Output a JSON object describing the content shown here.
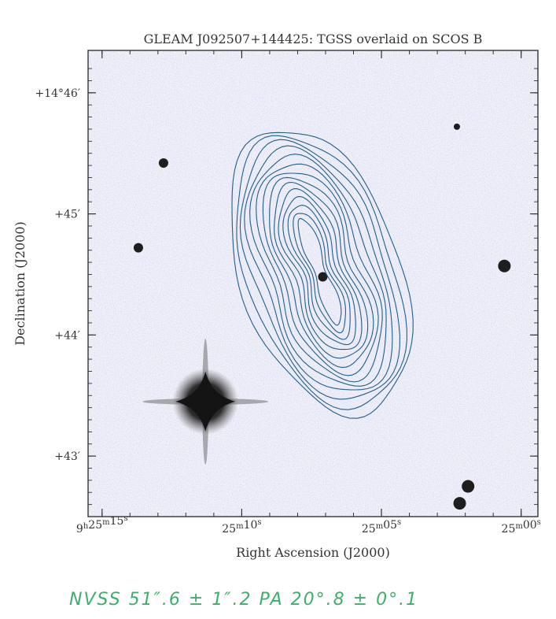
{
  "chart_data": {
    "type": "contour_overlay",
    "title": "GLEAM J092507+144425: TGSS overlaid on SCOS B",
    "xlabel": "Right Ascension (J2000)",
    "ylabel": "Declination (J2000)",
    "x_ticks": [
      {
        "label": "9h25m15s",
        "h": "9",
        "m": "25",
        "s": "15",
        "value_sec": 15,
        "prefix": "9",
        "unit1": "h",
        "mid": "25",
        "unit2": "m",
        "last": "15",
        "unit3": "s"
      },
      {
        "label": "25m10s",
        "h": "",
        "m": "25",
        "s": "10",
        "value_sec": 10,
        "prefix": "",
        "unit1": "",
        "mid": "25",
        "unit2": "m",
        "last": "10",
        "unit3": "s"
      },
      {
        "label": "25m05s",
        "h": "",
        "m": "25",
        "s": "05",
        "value_sec": 5,
        "prefix": "",
        "unit1": "",
        "mid": "25",
        "unit2": "m",
        "last": "05",
        "unit3": "s"
      },
      {
        "label": "25m00s",
        "h": "",
        "m": "25",
        "s": "00",
        "value_sec": 0,
        "prefix": "",
        "unit1": "",
        "mid": "25",
        "unit2": "m",
        "last": "00",
        "unit3": "s"
      }
    ],
    "y_ticks": [
      {
        "label": "+14°46′",
        "value_arcmin": 46
      },
      {
        "label": "+45′",
        "value_arcmin": 45
      },
      {
        "label": "+44′",
        "value_arcmin": 44
      },
      {
        "label": "+43′",
        "value_arcmin": 43
      }
    ],
    "xlim_sec": [
      15.5,
      59.5
    ],
    "ylim_arcmin": [
      42.5,
      46.35
    ],
    "contour_color": "#1f5f8b",
    "contour_levels": 14,
    "contour_peaks": [
      {
        "ra_sec": 7.7,
        "dec_arcmin": 44.85
      },
      {
        "ra_sec": 6.7,
        "dec_arcmin": 44.2
      }
    ],
    "stars": [
      {
        "ra_sec": 12.8,
        "dec_arcmin": 45.42,
        "mag": "small"
      },
      {
        "ra_sec": 13.7,
        "dec_arcmin": 44.72,
        "mag": "small"
      },
      {
        "ra_sec": 11.3,
        "dec_arcmin": 43.45,
        "mag": "bright"
      },
      {
        "ra_sec": 7.1,
        "dec_arcmin": 44.48,
        "mag": "small"
      },
      {
        "ra_sec": 2.3,
        "dec_arcmin": 45.72,
        "mag": "tiny"
      },
      {
        "ra_sec": 0.6,
        "dec_arcmin": 44.57,
        "mag": "medium"
      },
      {
        "ra_sec": 1.9,
        "dec_arcmin": 42.75,
        "mag": "medium"
      },
      {
        "ra_sec": 2.2,
        "dec_arcmin": 42.61,
        "mag": "medium"
      }
    ]
  },
  "annotation": {
    "text": "NVSS   51″.6 ± 1″.2   PA 20°.8 ± 0°.1"
  }
}
